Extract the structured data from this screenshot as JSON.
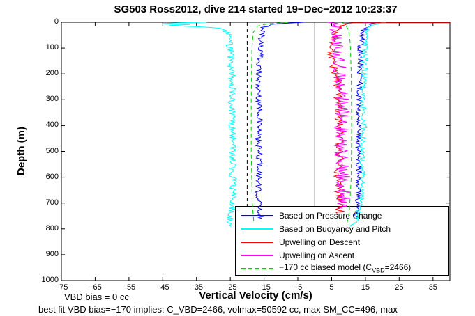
{
  "chart_data": {
    "type": "line",
    "title": "SG503 Ross2012, dive 214 started 19−Dec−2012 10:23:37",
    "xlabel": "Vertical Velocity (cm/s)",
    "ylabel": "Depth (m)",
    "xlim": [
      -75,
      40
    ],
    "ylim": [
      0,
      1000
    ],
    "y_inverted": true,
    "grid": false,
    "xticks": [
      -75,
      -65,
      -55,
      -45,
      -35,
      -25,
      -15,
      -5,
      5,
      15,
      25,
      35
    ],
    "yticks": [
      0,
      100,
      200,
      300,
      400,
      500,
      600,
      700,
      800,
      900,
      1000
    ],
    "reference_lines": [
      {
        "x": -20,
        "style": "dashed",
        "color": "#000000"
      },
      {
        "x": 0,
        "style": "solid",
        "color": "#000000"
      }
    ],
    "lines": [
      {
        "name": "pressure-change-descent",
        "color": "#0000ff",
        "dash": false,
        "noise": 0.9,
        "points": [
          [
            0,
            -3
          ],
          [
            4,
            -9
          ],
          [
            8,
            -13
          ],
          [
            20,
            -15
          ],
          [
            60,
            -15.8
          ],
          [
            150,
            -16.3
          ],
          [
            250,
            -16.8
          ],
          [
            350,
            -16.2
          ],
          [
            450,
            -16.8
          ],
          [
            550,
            -16.3
          ],
          [
            650,
            -16.8
          ],
          [
            720,
            -16.4
          ],
          [
            760,
            -16
          ]
        ]
      },
      {
        "name": "pressure-change-ascent",
        "color": "#0000ff",
        "dash": false,
        "noise": 0.9,
        "points": [
          [
            760,
            12
          ],
          [
            700,
            12.8
          ],
          [
            600,
            13.2
          ],
          [
            500,
            12.8
          ],
          [
            400,
            13.4
          ],
          [
            300,
            13
          ],
          [
            200,
            13.4
          ],
          [
            100,
            13.6
          ],
          [
            50,
            14
          ],
          [
            20,
            14.8
          ],
          [
            8,
            16.5
          ],
          [
            2,
            18
          ],
          [
            0,
            14
          ]
        ]
      },
      {
        "name": "buoyancy-pitch-descent",
        "color": "#00ffff",
        "dash": false,
        "noise": 1.1,
        "points": [
          [
            0,
            -32
          ],
          [
            2,
            -40
          ],
          [
            5,
            -45
          ],
          [
            9,
            -37
          ],
          [
            13,
            -43
          ],
          [
            18,
            -33
          ],
          [
            24,
            -28
          ],
          [
            40,
            -26
          ],
          [
            80,
            -25.2
          ],
          [
            150,
            -24.8
          ],
          [
            250,
            -24.4
          ],
          [
            350,
            -24.6
          ],
          [
            450,
            -24.2
          ],
          [
            550,
            -24.4
          ],
          [
            650,
            -24.2
          ],
          [
            720,
            -24.6
          ],
          [
            760,
            -25
          ],
          [
            790,
            -25.5
          ]
        ]
      },
      {
        "name": "buoyancy-pitch-ascent",
        "color": "#00ffff",
        "dash": false,
        "noise": 0.9,
        "points": [
          [
            790,
            10.5
          ],
          [
            770,
            12
          ],
          [
            700,
            13.8
          ],
          [
            600,
            14.2
          ],
          [
            500,
            14
          ],
          [
            400,
            14.6
          ],
          [
            300,
            14.2
          ],
          [
            200,
            14.6
          ],
          [
            100,
            15
          ],
          [
            50,
            15.4
          ],
          [
            20,
            16
          ],
          [
            8,
            18
          ],
          [
            2,
            20
          ],
          [
            0,
            21
          ]
        ]
      },
      {
        "name": "upwelling-descent",
        "color": "#ff0000",
        "dash": false,
        "noise": 1.3,
        "points": [
          [
            2,
            40
          ],
          [
            2,
            11.5
          ],
          [
            5,
            8.5
          ],
          [
            15,
            7
          ],
          [
            40,
            6
          ],
          [
            80,
            5.2
          ],
          [
            120,
            4.8
          ],
          [
            160,
            5.5
          ],
          [
            220,
            6.5
          ],
          [
            300,
            7
          ],
          [
            400,
            7.2
          ],
          [
            500,
            7.4
          ],
          [
            600,
            7
          ],
          [
            680,
            7.2
          ],
          [
            740,
            7.5
          ]
        ]
      },
      {
        "name": "upwelling-ascent",
        "color": "#ff00ff",
        "dash": false,
        "noise": 2.2,
        "points": [
          [
            720,
            8.2
          ],
          [
            650,
            8.6
          ],
          [
            550,
            8
          ],
          [
            450,
            7.6
          ],
          [
            350,
            8.2
          ],
          [
            250,
            7.8
          ],
          [
            150,
            7.2
          ],
          [
            80,
            6.8
          ],
          [
            40,
            6.2
          ],
          [
            15,
            5.8
          ],
          [
            5,
            5.2
          ],
          [
            0,
            4.5
          ]
        ]
      },
      {
        "name": "biased-model-descent",
        "color": "#00cc00",
        "dash": true,
        "noise": 0,
        "points": [
          [
            0,
            -8
          ],
          [
            6,
            -14
          ],
          [
            15,
            -17
          ],
          [
            40,
            -18.2
          ],
          [
            100,
            -18.6
          ],
          [
            300,
            -18.8
          ],
          [
            500,
            -18.8
          ],
          [
            700,
            -18.5
          ],
          [
            780,
            -18
          ]
        ]
      },
      {
        "name": "biased-model-ascent",
        "color": "#00cc00",
        "dash": true,
        "noise": 0,
        "points": [
          [
            780,
            9.5
          ],
          [
            740,
            10.2
          ],
          [
            600,
            10.8
          ],
          [
            400,
            10.9
          ],
          [
            200,
            10.8
          ],
          [
            80,
            10.5
          ],
          [
            30,
            10
          ],
          [
            8,
            9
          ],
          [
            0,
            8
          ]
        ]
      }
    ],
    "legend": {
      "position": "bottom-right",
      "entries": [
        {
          "label": "Based on Pressure Change",
          "color": "#0000ff",
          "dash": false
        },
        {
          "label": "Based on Buoyancy and Pitch",
          "color": "#00ffff",
          "dash": false
        },
        {
          "label": "Upwelling on Descent",
          "color": "#ff0000",
          "dash": false
        },
        {
          "label": "Upwelling on Ascent",
          "color": "#ff00ff",
          "dash": false
        },
        {
          "label_pre": "−170 cc biased model (C",
          "label_sub": "VBD",
          "label_post": "=2466)",
          "color": "#00cc00",
          "dash": true
        }
      ]
    }
  },
  "annotations": {
    "vbd_bias": "VBD bias = 0 cc",
    "best_fit": "best fit VBD bias=−170 implies: C_VBD=2466, volmax=50592 cc, max SM_CC=496, max"
  }
}
